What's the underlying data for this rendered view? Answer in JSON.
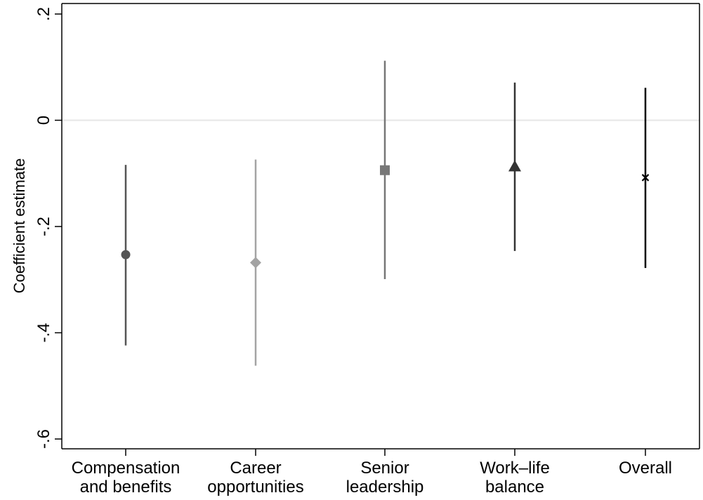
{
  "chart_data": {
    "type": "scatter",
    "subtype": "coefficient-plot-with-confidence-intervals",
    "title": "",
    "xlabel": "",
    "ylabel": "Coefficient estimate",
    "ylim": [
      -0.6,
      0.2
    ],
    "yticks": [
      0.2,
      0,
      -0.2,
      -0.4,
      -0.6
    ],
    "ytick_labels": [
      ".2",
      "0",
      "-.2",
      "-.4",
      "-.6"
    ],
    "reference_line": 0,
    "grid": false,
    "legend": "none",
    "series": [
      {
        "category_lines": [
          "Compensation",
          "and benefits"
        ],
        "estimate": -0.253,
        "ci_low": -0.424,
        "ci_high": -0.084,
        "marker": "circle",
        "color": "#555555"
      },
      {
        "category_lines": [
          "Career",
          "opportunities"
        ],
        "estimate": -0.268,
        "ci_low": -0.462,
        "ci_high": -0.074,
        "marker": "diamond",
        "color": "#a3a3a3"
      },
      {
        "category_lines": [
          "Senior",
          "leadership"
        ],
        "estimate": -0.094,
        "ci_low": -0.299,
        "ci_high": 0.112,
        "marker": "square",
        "color": "#777777"
      },
      {
        "category_lines": [
          "Work–life",
          "balance"
        ],
        "estimate": -0.087,
        "ci_low": -0.246,
        "ci_high": 0.071,
        "marker": "triangle",
        "color": "#333333"
      },
      {
        "category_lines": [
          "Overall"
        ],
        "estimate": -0.108,
        "ci_low": -0.278,
        "ci_high": 0.061,
        "marker": "x",
        "color": "#000000"
      }
    ]
  }
}
